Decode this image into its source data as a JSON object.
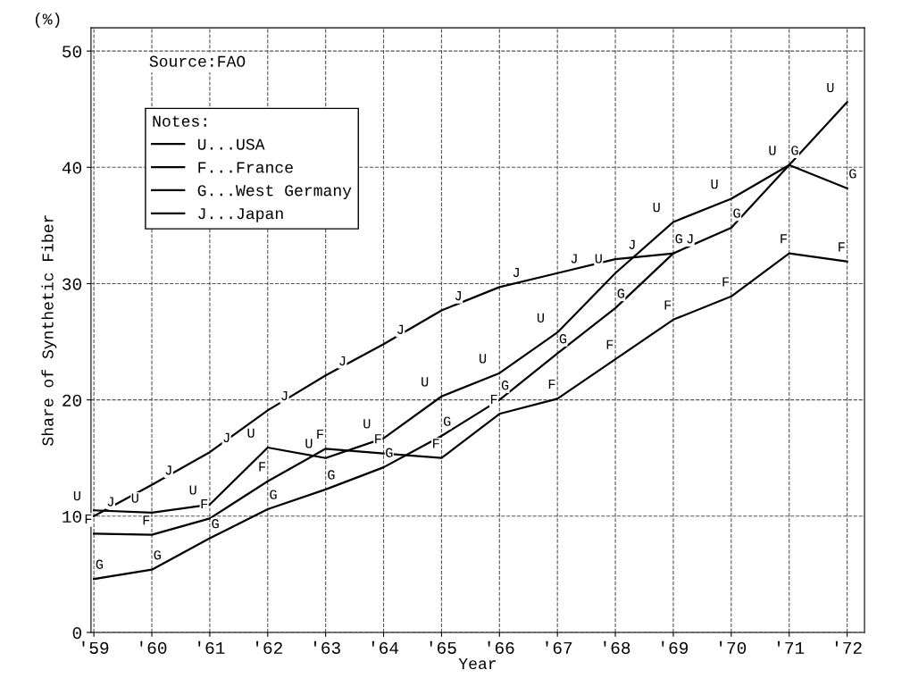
{
  "chart_data": {
    "type": "line",
    "categories": [
      "'59",
      "'60",
      "'61",
      "'62",
      "'63",
      "'64",
      "'65",
      "'66",
      "'67",
      "'68",
      "'69",
      "'70",
      "'71",
      "'72"
    ],
    "xlabel": "Year",
    "ylabel": "Share of Synthetic Fiber",
    "annotations": [
      "(%)",
      "Source:FAO"
    ],
    "legend_title": "Notes:",
    "legend": "top left",
    "grid": true,
    "ylim": [
      0,
      52
    ],
    "yticks": [
      0,
      10,
      20,
      30,
      40,
      50
    ],
    "series": [
      {
        "name": "U...USA",
        "color": "#000000",
        "values": [
          10.5,
          10.3,
          11.0,
          15.9,
          15.0,
          16.7,
          20.3,
          22.3,
          25.8,
          30.9,
          35.3,
          37.3,
          40.2,
          45.6
        ],
        "value_labels": [
          "U",
          "U",
          "U",
          "U",
          "U",
          "U",
          "U",
          "U",
          "U",
          "U",
          "U",
          "U",
          "U",
          "U"
        ]
      },
      {
        "name": "F...France",
        "color": "#000000",
        "values": [
          8.5,
          8.4,
          9.8,
          13.0,
          15.8,
          15.4,
          15.0,
          18.8,
          20.1,
          23.5,
          26.9,
          28.9,
          32.6,
          31.9
        ],
        "value_labels": [
          "F",
          "F",
          "F",
          "F",
          "F",
          "F",
          "F",
          "F",
          "F",
          "F",
          "F",
          "F",
          "F",
          "F"
        ]
      },
      {
        "name": "G...West Germany",
        "color": "#000000",
        "values": [
          4.6,
          5.4,
          8.1,
          10.6,
          12.3,
          14.2,
          16.9,
          20.0,
          24.0,
          27.9,
          32.6,
          34.8,
          40.2,
          38.2
        ],
        "value_labels": [
          "G",
          "G",
          "G",
          "G",
          "G",
          "G",
          "G",
          "G",
          "G",
          "G",
          "G",
          "G",
          "G",
          "G"
        ]
      },
      {
        "name": "J...Japan",
        "color": "#000000",
        "values": [
          10.0,
          12.7,
          15.5,
          19.1,
          22.1,
          24.8,
          27.7,
          29.7,
          30.9,
          32.1,
          32.6,
          null,
          null,
          null
        ],
        "value_labels": [
          "J",
          "J",
          "J",
          "J",
          "J",
          "J",
          "J",
          "J",
          "J",
          "J",
          "J",
          null,
          null,
          null
        ]
      }
    ]
  }
}
